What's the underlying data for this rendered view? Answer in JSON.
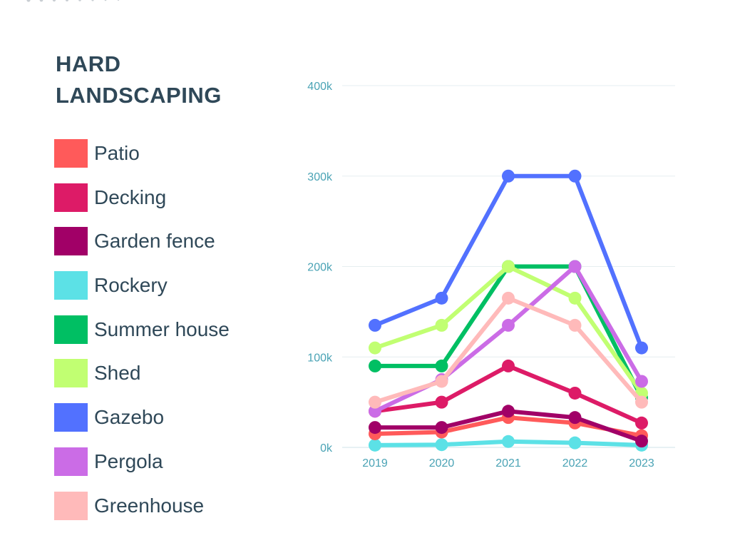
{
  "title": "HARD LANDSCAPING",
  "colors": {
    "text": "#2f4858",
    "axis_text": "#4aa3b5",
    "grid": "#e6eef0"
  },
  "chart_data": {
    "type": "line",
    "title": "HARD LANDSCAPING",
    "xlabel": "",
    "ylabel": "",
    "categories": [
      "2019",
      "2020",
      "2021",
      "2022",
      "2023"
    ],
    "ylim": [
      0,
      400000
    ],
    "yticks": [
      0,
      100000,
      200000,
      300000,
      400000
    ],
    "ytick_labels": [
      "0k",
      "100k",
      "200k",
      "300k",
      "400k"
    ],
    "grid": true,
    "legend_position": "left",
    "series": [
      {
        "name": "Patio",
        "color": "#ff5a5a",
        "values": [
          15000,
          17000,
          33000,
          27000,
          13000
        ]
      },
      {
        "name": "Decking",
        "color": "#dd1b67",
        "values": [
          40000,
          50000,
          90000,
          60000,
          27000
        ]
      },
      {
        "name": "Garden fence",
        "color": "#a10067",
        "values": [
          22000,
          22000,
          40000,
          33000,
          7000
        ]
      },
      {
        "name": "Rockery",
        "color": "#5ce1e6",
        "values": [
          2500,
          3000,
          6500,
          5000,
          2500
        ]
      },
      {
        "name": "Summer house",
        "color": "#00bf63",
        "values": [
          90000,
          90000,
          200000,
          200000,
          55000
        ]
      },
      {
        "name": "Shed",
        "color": "#c1ff72",
        "values": [
          110000,
          135000,
          200000,
          165000,
          60000
        ]
      },
      {
        "name": "Gazebo",
        "color": "#5271ff",
        "values": [
          135000,
          165000,
          300000,
          300000,
          110000
        ]
      },
      {
        "name": "Pergola",
        "color": "#cb6ce6",
        "values": [
          40000,
          75000,
          135000,
          200000,
          73000
        ]
      },
      {
        "name": "Greenhouse",
        "color": "#ffbaba",
        "values": [
          50000,
          73000,
          165000,
          135000,
          50000
        ]
      }
    ]
  }
}
